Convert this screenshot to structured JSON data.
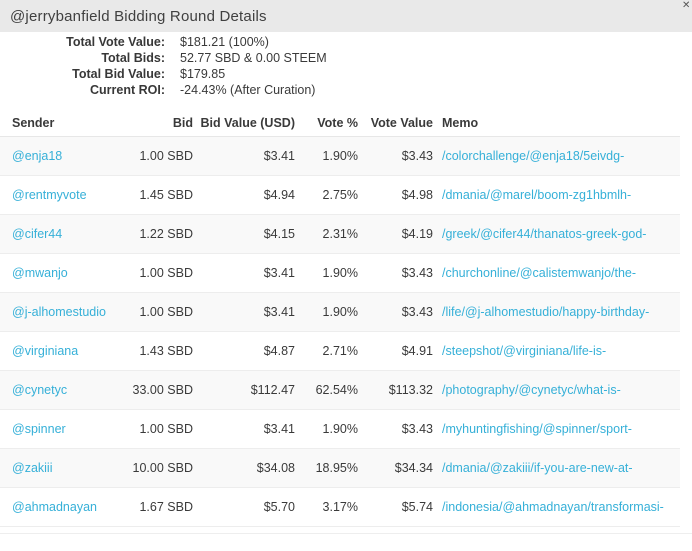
{
  "window": {
    "title": "@jerrybanfield Bidding Round Details",
    "close_icon": "✕"
  },
  "stats": [
    {
      "label": "Total Vote Value:",
      "value": "$181.21 (100%)"
    },
    {
      "label": "Total Bids:",
      "value": "52.77 SBD & 0.00 STEEM"
    },
    {
      "label": "Total Bid Value:",
      "value": "$179.85"
    },
    {
      "label": "Current ROI:",
      "value": "-24.43% (After Curation)"
    }
  ],
  "table": {
    "headers": [
      "Sender",
      "Bid",
      "Bid Value (USD)",
      "Vote %",
      "Vote Value",
      "Memo"
    ],
    "rows": [
      {
        "sender": "@enja18",
        "bid": "1.00 SBD",
        "bid_value": "$3.41",
        "vote_pct": "1.90%",
        "vote_value": "$3.43",
        "memo": "/colorchallenge/@enja18/5eivdg-"
      },
      {
        "sender": "@rentmyvote",
        "bid": "1.45 SBD",
        "bid_value": "$4.94",
        "vote_pct": "2.75%",
        "vote_value": "$4.98",
        "memo": "/dmania/@marel/boom-zg1hbmlh-"
      },
      {
        "sender": "@cifer44",
        "bid": "1.22 SBD",
        "bid_value": "$4.15",
        "vote_pct": "2.31%",
        "vote_value": "$4.19",
        "memo": "/greek/@cifer44/thanatos-greek-god-"
      },
      {
        "sender": "@mwanjo",
        "bid": "1.00 SBD",
        "bid_value": "$3.41",
        "vote_pct": "1.90%",
        "vote_value": "$3.43",
        "memo": "/churchonline/@calistemwanjo/the-"
      },
      {
        "sender": "@j-alhomestudio",
        "bid": "1.00 SBD",
        "bid_value": "$3.41",
        "vote_pct": "1.90%",
        "vote_value": "$3.43",
        "memo": "/life/@j-alhomestudio/happy-birthday-"
      },
      {
        "sender": "@virginiana",
        "bid": "1.43 SBD",
        "bid_value": "$4.87",
        "vote_pct": "2.71%",
        "vote_value": "$4.91",
        "memo": "/steepshot/@virginiana/life-is-"
      },
      {
        "sender": "@cynetyc",
        "bid": "33.00 SBD",
        "bid_value": "$112.47",
        "vote_pct": "62.54%",
        "vote_value": "$113.32",
        "memo": "/photography/@cynetyc/what-is-"
      },
      {
        "sender": "@spinner",
        "bid": "1.00 SBD",
        "bid_value": "$3.41",
        "vote_pct": "1.90%",
        "vote_value": "$3.43",
        "memo": "/myhuntingfishing/@spinner/sport-"
      },
      {
        "sender": "@zakiii",
        "bid": "10.00 SBD",
        "bid_value": "$34.08",
        "vote_pct": "18.95%",
        "vote_value": "$34.34",
        "memo": "/dmania/@zakiii/if-you-are-new-at-"
      },
      {
        "sender": "@ahmadnayan",
        "bid": "1.67 SBD",
        "bid_value": "$5.70",
        "vote_pct": "3.17%",
        "vote_value": "$5.74",
        "memo": "/indonesia/@ahmadnayan/transformasi-"
      }
    ]
  },
  "colors": {
    "link": "#36b0d8",
    "titlebar_bg": "#e9e9e9",
    "stripe_bg": "#f9f9f9"
  }
}
